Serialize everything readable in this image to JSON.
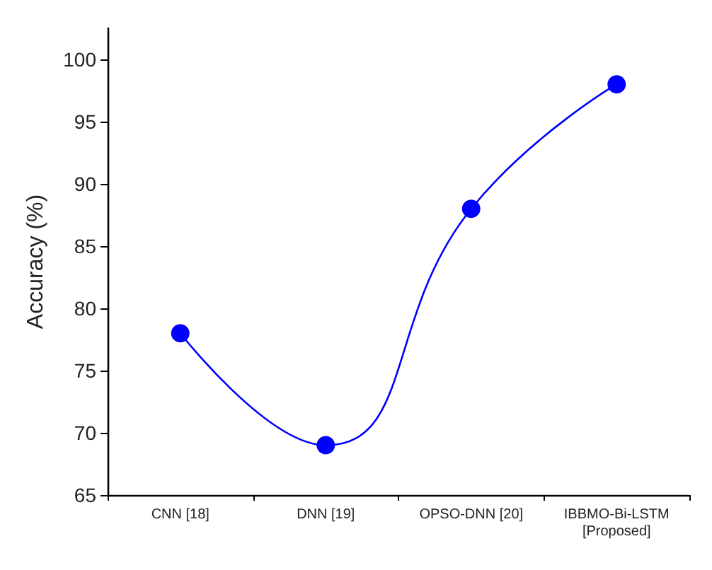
{
  "chart_data": {
    "type": "line",
    "ylabel": "Accuracy (%)",
    "categories": [
      "CNN [18]",
      "DNN [19]",
      "OPSO-DNN [20]",
      "IBBMO-Bi-LSTM\n[Proposed]"
    ],
    "series": [
      {
        "color": "#0000ff",
        "values": [
          78,
          69,
          88,
          98
        ]
      }
    ],
    "ylim": [
      65,
      102.5
    ],
    "yticks": [
      65,
      70,
      75,
      80,
      85,
      90,
      95,
      100
    ],
    "grid": false,
    "marker": "circle",
    "line_style": "solid"
  }
}
